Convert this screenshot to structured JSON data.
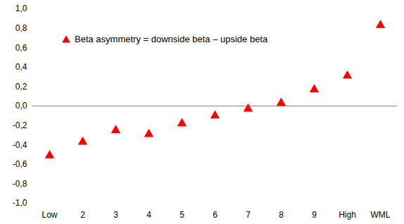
{
  "chart_data": {
    "type": "scatter",
    "categories": [
      "Low",
      "2",
      "3",
      "4",
      "5",
      "6",
      "7",
      "8",
      "9",
      "High",
      "WML"
    ],
    "series": [
      {
        "name": "Beta asymmetry = downside beta – upside beta",
        "color": "#ff0000",
        "marker": "triangle",
        "values": [
          -0.51,
          -0.37,
          -0.25,
          -0.29,
          -0.18,
          -0.1,
          -0.03,
          0.03,
          0.17,
          0.31,
          0.83
        ]
      }
    ],
    "ylim": [
      -1,
      1
    ],
    "yticks": [
      {
        "value": -1,
        "label": "-1,0"
      },
      {
        "value": -0.8,
        "label": "-0,8"
      },
      {
        "value": -0.6,
        "label": "-0,6"
      },
      {
        "value": -0.4,
        "label": "-0,4"
      },
      {
        "value": -0.2,
        "label": "-0,2"
      },
      {
        "value": 0,
        "label": "0,0"
      },
      {
        "value": 0.2,
        "label": "0,2"
      },
      {
        "value": 0.4,
        "label": "0,4"
      },
      {
        "value": 0.6,
        "label": "0,6"
      },
      {
        "value": 0.8,
        "label": "0,8"
      },
      {
        "value": 1,
        "label": "1,0"
      }
    ],
    "legend": "top-left",
    "grid": false
  }
}
